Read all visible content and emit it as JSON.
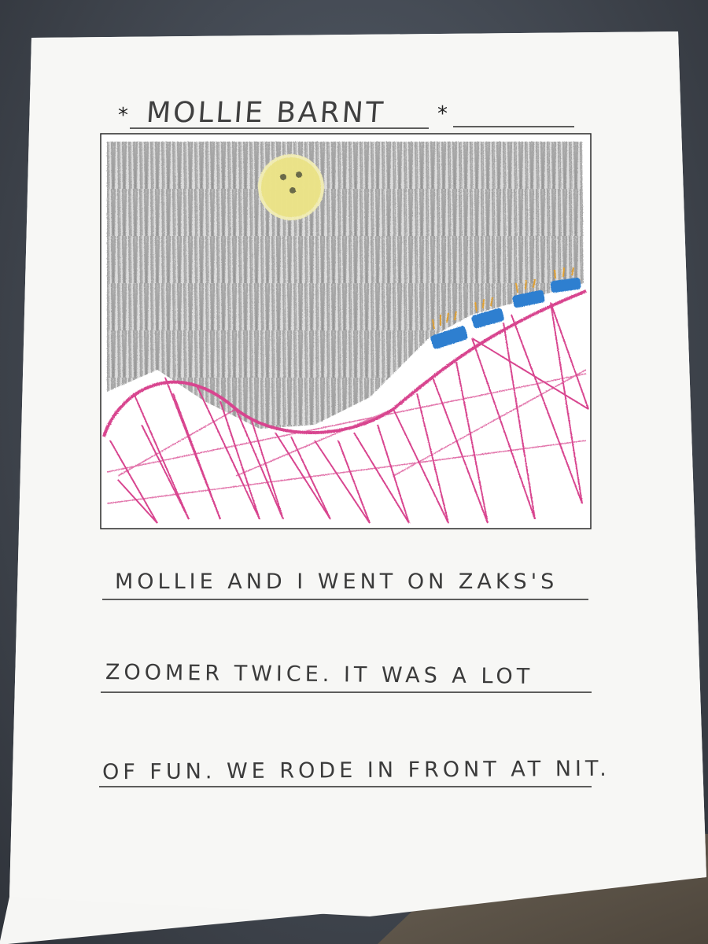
{
  "worksheet": {
    "name_line": "MOLLIE BARNT",
    "star_left": "*",
    "star_right": "*",
    "story_lines": [
      "MOLLIE AND I WENT ON ZAKS'S",
      "ZOOMER TWICE. IT WAS A LOT",
      "OF FUN. WE RODE IN FRONT AT NIT."
    ]
  },
  "drawing": {
    "subjects": [
      "moon",
      "night-sky",
      "roller-coaster-track",
      "roller-coaster-cars"
    ],
    "colors": {
      "sky": "#8a8a8a",
      "moon": "#e8df7a",
      "track": "#d8458f",
      "cars": "#2f7fd0",
      "riders": "#e0a030"
    }
  }
}
